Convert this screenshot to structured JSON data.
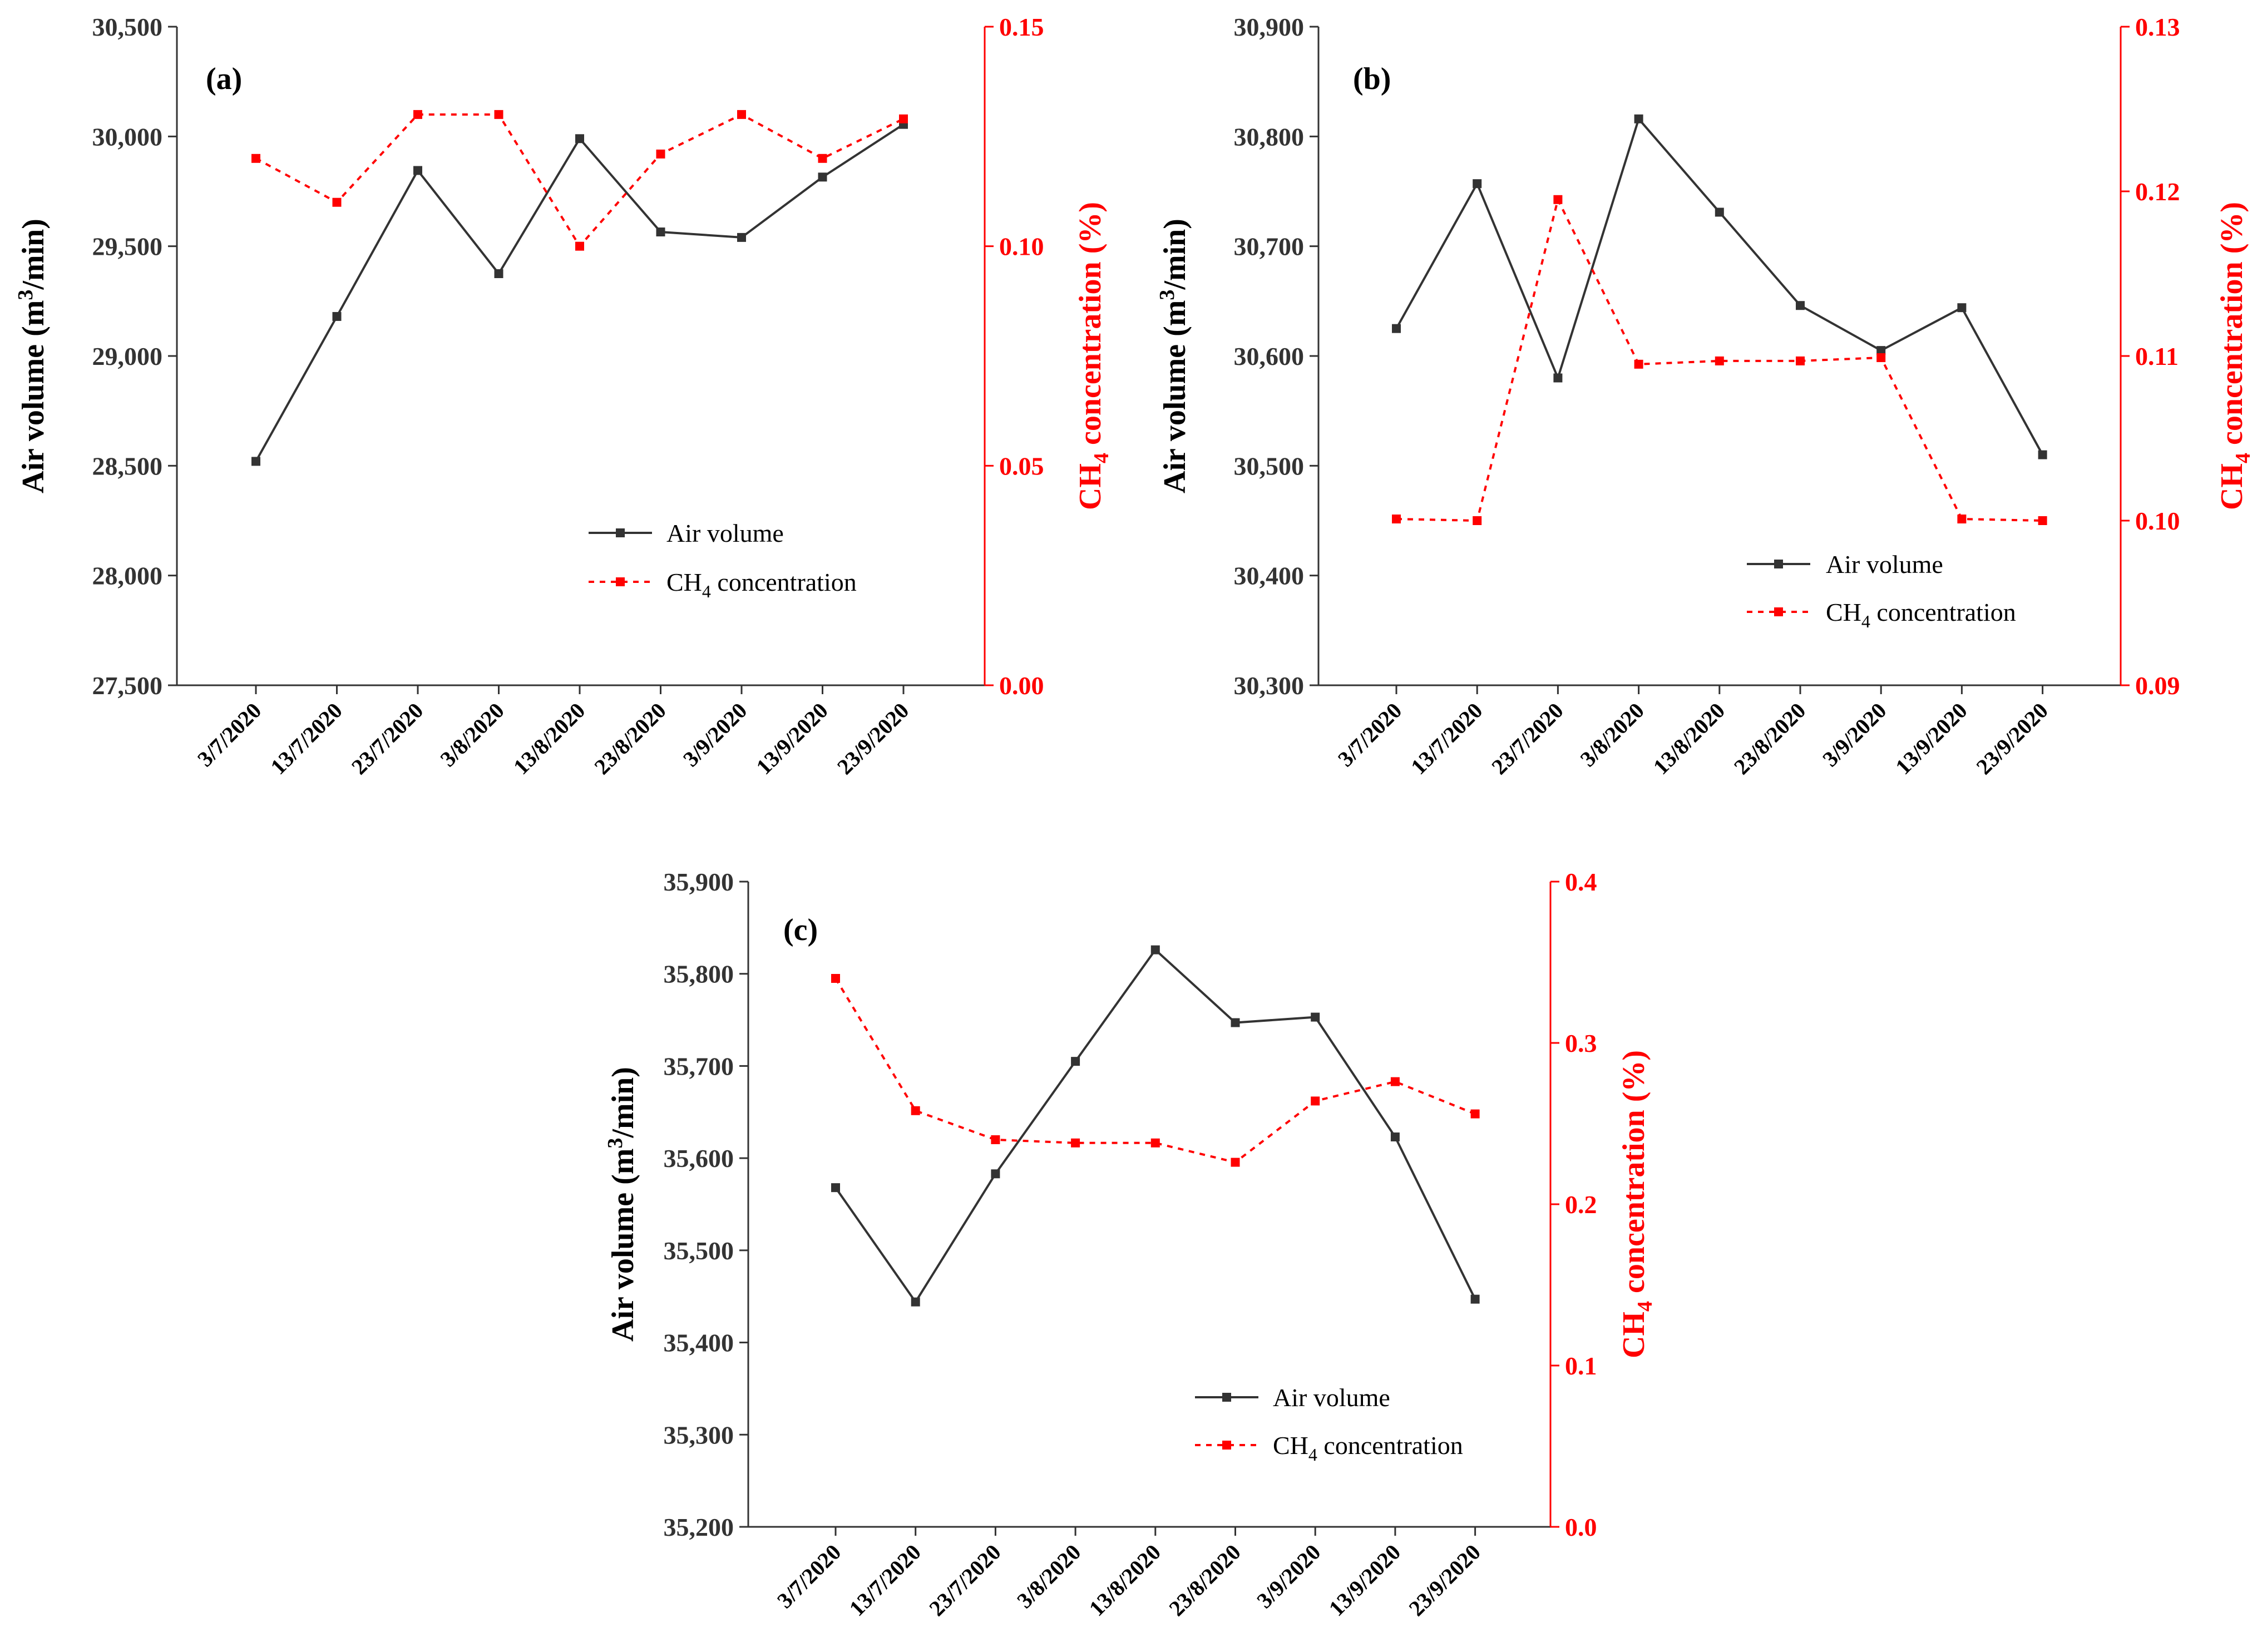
{
  "colors": {
    "air": "#333333",
    "ch4": "#ff0000",
    "axis": "#333333"
  },
  "chart_data": [
    {
      "type": "line",
      "panel_label": "(a)",
      "categories": [
        "3/7/2020",
        "13/7/2020",
        "23/7/2020",
        "3/8/2020",
        "13/8/2020",
        "23/8/2020",
        "3/9/2020",
        "13/9/2020",
        "23/9/2020"
      ],
      "series": [
        {
          "name": "Air volume",
          "axis": "left",
          "values": [
            28520,
            29180,
            29845,
            29375,
            29990,
            29565,
            29540,
            29815,
            30055
          ]
        },
        {
          "name": "CH4 concentration",
          "axis": "right",
          "values": [
            0.12,
            0.11,
            0.13,
            0.13,
            0.1,
            0.121,
            0.13,
            0.12,
            0.129
          ]
        }
      ],
      "ylabel": "Air volume (m3/min)",
      "ylabel_parts": {
        "pre": "Air volume (m",
        "sup": "3",
        "post": "/min)"
      },
      "y2label": "CH4 concentration (%)",
      "y2label_parts": {
        "pre": "CH",
        "sub": "4",
        "post": " concentration (%)"
      },
      "ylim": [
        27500,
        30500
      ],
      "y2lim": [
        0,
        0.15
      ],
      "yticks": [
        "27,500",
        "28,000",
        "28,500",
        "29,000",
        "29,500",
        "30,000",
        "30,500"
      ],
      "y2ticks": [
        "0.00",
        "0.05",
        "0.10",
        "0.15"
      ],
      "legend": {
        "air": "Air volume",
        "ch4_parts": {
          "pre": "CH",
          "sub": "4",
          "post": " concentration"
        },
        "position": "lower-right"
      }
    },
    {
      "type": "line",
      "panel_label": "(b)",
      "categories": [
        "3/7/2020",
        "13/7/2020",
        "23/7/2020",
        "3/8/2020",
        "13/8/2020",
        "23/8/2020",
        "3/9/2020",
        "13/9/2020",
        "23/9/2020"
      ],
      "series": [
        {
          "name": "Air volume",
          "axis": "left",
          "values": [
            30625,
            30757,
            30580,
            30816,
            30731,
            30646,
            30605,
            30644,
            30510
          ]
        },
        {
          "name": "CH4 concentration",
          "axis": "right",
          "values": [
            0.1001,
            0.1,
            0.1195,
            0.1095,
            0.1097,
            0.1097,
            0.1099,
            0.1001,
            0.1
          ]
        }
      ],
      "ylabel": "Air volume (m3/min)",
      "ylabel_parts": {
        "pre": "Air volume (m",
        "sup": "3",
        "post": "/min)"
      },
      "y2label": "CH4 concentration (%)",
      "y2label_parts": {
        "pre": "CH",
        "sub": "4",
        "post": " concentration (%)"
      },
      "ylim": [
        30300,
        30900
      ],
      "y2lim": [
        0.09,
        0.13
      ],
      "yticks": [
        "30,300",
        "30,400",
        "30,500",
        "30,600",
        "30,700",
        "30,800",
        "30,900"
      ],
      "y2ticks": [
        "0.09",
        "0.10",
        "0.11",
        "0.12",
        "0.13"
      ],
      "legend": {
        "air": "Air volume",
        "ch4_parts": {
          "pre": "CH",
          "sub": "4",
          "post": " concentration"
        },
        "position": "lower-right"
      }
    },
    {
      "type": "line",
      "panel_label": "(c)",
      "categories": [
        "3/7/2020",
        "13/7/2020",
        "23/7/2020",
        "3/8/2020",
        "13/8/2020",
        "23/8/2020",
        "3/9/2020",
        "13/9/2020",
        "23/9/2020"
      ],
      "series": [
        {
          "name": "Air volume",
          "axis": "left",
          "values": [
            35568,
            35444,
            35583,
            35705,
            35826,
            35747,
            35753,
            35623,
            35447
          ]
        },
        {
          "name": "CH4 concentration",
          "axis": "right",
          "values": [
            0.34,
            0.258,
            0.24,
            0.238,
            0.238,
            0.226,
            0.264,
            0.276,
            0.256
          ]
        }
      ],
      "ylabel": "Air volume (m3/min)",
      "ylabel_parts": {
        "pre": "Air volume (m",
        "sup": "3",
        "post": "/min)"
      },
      "y2label": "CH4 concentration (%)",
      "y2label_parts": {
        "pre": "CH",
        "sub": "4",
        "post": " concentration (%)"
      },
      "ylim": [
        35200,
        35900
      ],
      "y2lim": [
        0,
        0.4
      ],
      "yticks": [
        "35,200",
        "35,300",
        "35,400",
        "35,500",
        "35,600",
        "35,700",
        "35,800",
        "35,900"
      ],
      "y2ticks": [
        "0.0",
        "0.1",
        "0.2",
        "0.3",
        "0.4"
      ],
      "legend": {
        "air": "Air volume",
        "ch4_parts": {
          "pre": "CH",
          "sub": "4",
          "post": " concentration"
        },
        "position": "lower-right"
      }
    }
  ]
}
